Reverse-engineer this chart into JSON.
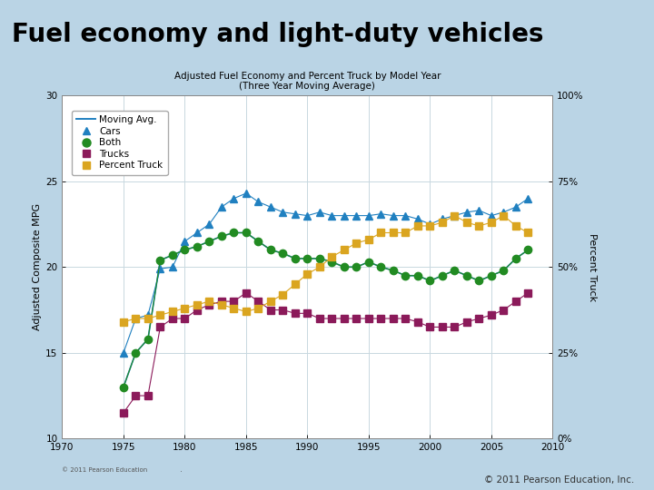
{
  "title": "Fuel economy and light-duty vehicles",
  "chart_title_line1": "Adjusted Fuel Economy and Percent Truck by Model Year",
  "chart_title_line2": "(Three Year Moving Average)",
  "ylabel_left": "Adjusted Composite MPG",
  "ylabel_right": "Percent Truck",
  "copyright_bottom": "© 2011 Pearson Education, Inc.",
  "copyright_chart": "© 2011 Pearson Education                .",
  "xlim": [
    1970,
    2010
  ],
  "ylim_left": [
    10,
    30
  ],
  "ylim_right": [
    0,
    100
  ],
  "xticks": [
    1970,
    1975,
    1980,
    1985,
    1990,
    1995,
    2000,
    2005,
    2010
  ],
  "yticks_left": [
    10,
    15,
    20,
    25,
    30
  ],
  "yticks_right": [
    0,
    25,
    50,
    75,
    100
  ],
  "ytick_labels_right": [
    "0%",
    "25%",
    "50%",
    "75%",
    "100%"
  ],
  "bg_color": "#bad4e5",
  "plot_bg_color": "#eef3f7",
  "white_bg": "#ffffff",
  "cars_x": [
    1975,
    1976,
    1977,
    1978,
    1979,
    1980,
    1981,
    1982,
    1983,
    1984,
    1985,
    1986,
    1987,
    1988,
    1989,
    1990,
    1991,
    1992,
    1993,
    1994,
    1995,
    1996,
    1997,
    1998,
    1999,
    2000,
    2001,
    2002,
    2003,
    2004,
    2005,
    2006,
    2007,
    2008
  ],
  "cars_y": [
    15.0,
    17.0,
    17.2,
    19.9,
    20.0,
    21.5,
    22.0,
    22.5,
    23.5,
    24.0,
    24.3,
    23.8,
    23.5,
    23.2,
    23.1,
    23.0,
    23.2,
    23.0,
    23.0,
    23.0,
    23.0,
    23.1,
    23.0,
    23.0,
    22.8,
    22.5,
    22.8,
    23.0,
    23.2,
    23.3,
    23.0,
    23.2,
    23.5,
    24.0
  ],
  "cars_color": "#2080c0",
  "both_x": [
    1975,
    1976,
    1977,
    1978,
    1979,
    1980,
    1981,
    1982,
    1983,
    1984,
    1985,
    1986,
    1987,
    1988,
    1989,
    1990,
    1991,
    1992,
    1993,
    1994,
    1995,
    1996,
    1997,
    1998,
    1999,
    2000,
    2001,
    2002,
    2003,
    2004,
    2005,
    2006,
    2007,
    2008
  ],
  "both_y": [
    13.0,
    15.0,
    15.8,
    20.4,
    20.7,
    21.0,
    21.2,
    21.5,
    21.8,
    22.0,
    22.0,
    21.5,
    21.0,
    20.8,
    20.5,
    20.5,
    20.5,
    20.3,
    20.0,
    20.0,
    20.3,
    20.0,
    19.8,
    19.5,
    19.5,
    19.2,
    19.5,
    19.8,
    19.5,
    19.2,
    19.5,
    19.8,
    20.5,
    21.0
  ],
  "both_color": "#228B22",
  "trucks_x": [
    1975,
    1976,
    1977,
    1978,
    1979,
    1980,
    1981,
    1982,
    1983,
    1984,
    1985,
    1986,
    1987,
    1988,
    1989,
    1990,
    1991,
    1992,
    1993,
    1994,
    1995,
    1996,
    1997,
    1998,
    1999,
    2000,
    2001,
    2002,
    2003,
    2004,
    2005,
    2006,
    2007,
    2008
  ],
  "trucks_y": [
    11.5,
    12.5,
    12.5,
    16.5,
    17.0,
    17.0,
    17.5,
    17.8,
    18.0,
    18.0,
    18.5,
    18.0,
    17.5,
    17.5,
    17.3,
    17.3,
    17.0,
    17.0,
    17.0,
    17.0,
    17.0,
    17.0,
    17.0,
    17.0,
    16.8,
    16.5,
    16.5,
    16.5,
    16.8,
    17.0,
    17.2,
    17.5,
    18.0,
    18.5
  ],
  "trucks_color": "#8B1A5A",
  "pct_truck_x": [
    1975,
    1976,
    1977,
    1978,
    1979,
    1980,
    1981,
    1982,
    1983,
    1984,
    1985,
    1986,
    1987,
    1988,
    1989,
    1990,
    1991,
    1992,
    1993,
    1994,
    1995,
    1996,
    1997,
    1998,
    1999,
    2000,
    2001,
    2002,
    2003,
    2004,
    2005,
    2006,
    2007,
    2008
  ],
  "pct_truck_pct": [
    34,
    35,
    35,
    36,
    37,
    38,
    39,
    40,
    39,
    38,
    37,
    38,
    40,
    42,
    45,
    48,
    50,
    53,
    55,
    57,
    58,
    60,
    60,
    60,
    62,
    62,
    63,
    65,
    63,
    62,
    63,
    65,
    62,
    60
  ],
  "pct_truck_color": "#DAA520",
  "moving_avg_x": [
    1975,
    1976,
    1977,
    1978,
    1979,
    1980,
    1981,
    1982,
    1983,
    1984,
    1985,
    1986,
    1987,
    1988,
    1989,
    1990,
    1991,
    1992,
    1993,
    1994,
    1995,
    1996,
    1997,
    1998,
    1999,
    2000,
    2001,
    2002,
    2003,
    2004,
    2005,
    2006,
    2007,
    2008
  ],
  "moving_avg_y": [
    13.0,
    15.0,
    15.8,
    20.4,
    20.7,
    21.0,
    21.2,
    21.5,
    21.8,
    22.0,
    22.0,
    21.5,
    21.0,
    20.8,
    20.5,
    20.5,
    20.5,
    20.3,
    20.0,
    20.0,
    20.3,
    20.0,
    19.8,
    19.5,
    19.5,
    19.2,
    19.5,
    19.8,
    19.5,
    19.2,
    19.5,
    19.8,
    20.5,
    21.0
  ],
  "moving_avg_color": "#2080c0",
  "legend_items": [
    "Moving Avg.",
    "Cars",
    "Both",
    "Trucks",
    "Percent Truck"
  ],
  "legend_colors": [
    "#2080c0",
    "#2080c0",
    "#228B22",
    "#8B1A5A",
    "#DAA520"
  ]
}
